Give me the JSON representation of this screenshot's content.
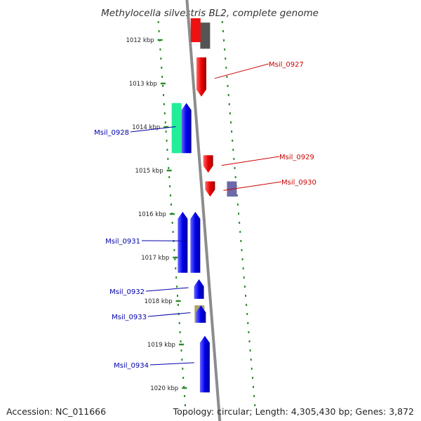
{
  "title": "Methylocella silvestris BL2, complete genome",
  "footer": {
    "accession": "Accession: NC_011666",
    "topology": "Topology: circular; Length: 4,305,430 bp; Genes: 3,872"
  },
  "colors": {
    "backbone": "#8c8c8c",
    "ticks": "#2e8b2e",
    "forward_label": "#cc0000",
    "reverse_label": "#0000aa"
  },
  "ticks": [
    {
      "kbp": 1012,
      "label": "1012 kbp"
    },
    {
      "kbp": 1013,
      "label": "1013 kbp"
    },
    {
      "kbp": 1014,
      "label": "1014 kbp"
    },
    {
      "kbp": 1015,
      "label": "1015 kbp"
    },
    {
      "kbp": 1016,
      "label": "1016 kbp"
    },
    {
      "kbp": 1017,
      "label": "1017 kbp"
    },
    {
      "kbp": 1018,
      "label": "1018 kbp"
    },
    {
      "kbp": 1019,
      "label": "1019 kbp"
    },
    {
      "kbp": 1020,
      "label": "1020 kbp"
    }
  ],
  "genes": [
    {
      "name": "Msil_0927",
      "strand": "+",
      "start_kbp": 1012.4,
      "end_kbp": 1013.3,
      "color": "#ee1111",
      "label": "Msil_0927"
    },
    {
      "name": "Msil_0928",
      "strand": "-",
      "start_kbp": 1013.45,
      "end_kbp": 1014.6,
      "color": "#1515ee",
      "label": "Msil_0928"
    },
    {
      "name": "Msil_0929",
      "strand": "+",
      "start_kbp": 1014.65,
      "end_kbp": 1015.05,
      "color": "#ee1111",
      "label": "Msil_0929"
    },
    {
      "name": "Msil_0930",
      "strand": "+",
      "start_kbp": 1015.25,
      "end_kbp": 1015.6,
      "color": "#ee1111",
      "label": "Msil_0930"
    },
    {
      "name": "Msil_0931",
      "strand": "-",
      "start_kbp": 1015.95,
      "end_kbp": 1017.35,
      "color": "#1515ee",
      "label": "Msil_0931"
    },
    {
      "name": "Msil_0932",
      "strand": "-",
      "start_kbp": 1017.5,
      "end_kbp": 1017.95,
      "color": "#1515ee",
      "label": "Msil_0932"
    },
    {
      "name": "Msil_0933",
      "strand": "-",
      "start_kbp": 1018.1,
      "end_kbp": 1018.5,
      "color": "#1515ee",
      "label": "Msil_0933"
    },
    {
      "name": "Msil_0934",
      "strand": "-",
      "start_kbp": 1018.8,
      "end_kbp": 1020.1,
      "color": "#1515ee",
      "label": "Msil_0934"
    }
  ],
  "features": [
    {
      "start_kbp": 1013.45,
      "end_kbp": 1014.6,
      "color": "#22ee99"
    },
    {
      "start_kbp": 1015.25,
      "end_kbp": 1015.6,
      "color": "#6a6aaa"
    },
    {
      "start_kbp": 1018.1,
      "end_kbp": 1018.5,
      "color": "#aaa066"
    },
    {
      "start_kbp": 1011.6,
      "end_kbp": 1012.2,
      "color": "#555555"
    },
    {
      "start_kbp": 1011.5,
      "end_kbp": 1012.05,
      "color": "#ee1111"
    }
  ]
}
